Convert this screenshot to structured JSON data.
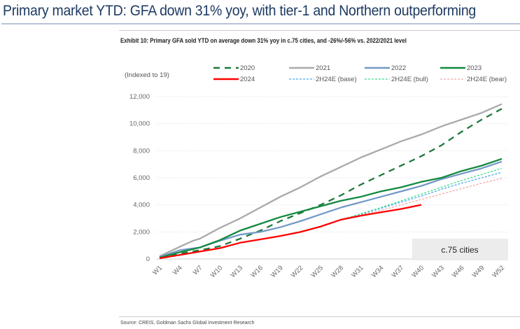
{
  "header": {
    "title": "Primary market YTD: GFA down 31% yoy, with tier-1 and Northern outperforming"
  },
  "exhibit_title": "Exhibit 10: Primary GFA sold YTD on average down 31% yoy in c.75 cities, and -26%/-56% vs. 2022/2021 level",
  "source": "Source: CREIS, Goldman Sachs Global Investment Research",
  "chart_data": {
    "type": "line",
    "ylabel": "(Indexed to 19)",
    "annotation": "c.75 cities",
    "ylim": [
      0,
      12000
    ],
    "yticks": [
      0,
      2000,
      4000,
      6000,
      8000,
      10000,
      12000
    ],
    "ytick_labels": [
      "0",
      "2,000",
      "4,000",
      "6,000",
      "8,000",
      "10,000",
      "12,000"
    ],
    "xticks": [
      "W1",
      "W4",
      "W7",
      "W10",
      "W13",
      "W16",
      "W19",
      "W22",
      "W25",
      "W28",
      "W31",
      "W34",
      "W37",
      "W40",
      "W43",
      "W46",
      "W49",
      "W52"
    ],
    "grid": "horizontal",
    "legend": "top",
    "series": [
      {
        "name": "2020",
        "color": "#1e7a3c",
        "style": "dash-long",
        "x": [
          1,
          4,
          7,
          10,
          13,
          16,
          19,
          22,
          25,
          28,
          31,
          34,
          37,
          40,
          43,
          46,
          49,
          52
        ],
        "values": [
          100,
          400,
          650,
          950,
          1500,
          2100,
          2800,
          3400,
          4000,
          4700,
          5500,
          6200,
          6900,
          7600,
          8400,
          9400,
          10300,
          11100
        ]
      },
      {
        "name": "2021",
        "color": "#aaaaaa",
        "style": "solid",
        "x": [
          1,
          4,
          6,
          7,
          10,
          13,
          16,
          19,
          22,
          25,
          28,
          31,
          34,
          37,
          40,
          43,
          46,
          49,
          52
        ],
        "values": [
          200,
          900,
          1350,
          1500,
          2300,
          3000,
          3800,
          4600,
          5300,
          6100,
          6800,
          7500,
          8100,
          8700,
          9200,
          9800,
          10300,
          10800,
          11450
        ]
      },
      {
        "name": "2022",
        "color": "#7399c6",
        "style": "solid",
        "x": [
          1,
          4,
          7,
          10,
          13,
          16,
          19,
          22,
          25,
          28,
          31,
          34,
          37,
          40,
          43,
          46,
          49,
          52
        ],
        "values": [
          150,
          650,
          850,
          1350,
          1800,
          2000,
          2350,
          2800,
          3300,
          3800,
          4200,
          4600,
          5000,
          5400,
          5900,
          6300,
          6700,
          7200
        ]
      },
      {
        "name": "2023",
        "color": "#12893f",
        "style": "solid",
        "x": [
          1,
          4,
          7,
          10,
          13,
          16,
          19,
          22,
          25,
          28,
          31,
          34,
          37,
          40,
          43,
          46,
          49,
          52
        ],
        "values": [
          100,
          500,
          850,
          1400,
          2100,
          2600,
          3100,
          3500,
          3900,
          4300,
          4600,
          5000,
          5300,
          5700,
          6000,
          6500,
          6900,
          7400
        ]
      },
      {
        "name": "2024",
        "color": "#ff0000",
        "style": "solid",
        "x": [
          1,
          4,
          7,
          10,
          13,
          16,
          19,
          22,
          25,
          28,
          31,
          34,
          37,
          40
        ],
        "values": [
          50,
          300,
          550,
          800,
          1200,
          1450,
          1700,
          2000,
          2400,
          2900,
          3200,
          3450,
          3700,
          4000
        ]
      },
      {
        "name": "2H24E (base)",
        "color": "#4aa8f0",
        "style": "dash-short",
        "x": [
          28,
          31,
          34,
          37,
          40,
          43,
          46,
          49,
          52
        ],
        "values": [
          2900,
          3300,
          3750,
          4200,
          4650,
          5150,
          5600,
          6000,
          6400
        ]
      },
      {
        "name": "2H24E (bull)",
        "color": "#3ee08a",
        "style": "dash-short",
        "x": [
          28,
          31,
          34,
          37,
          40,
          43,
          46,
          49,
          52
        ],
        "values": [
          2900,
          3350,
          3800,
          4300,
          4800,
          5300,
          5800,
          6250,
          6700
        ]
      },
      {
        "name": "2H24E (bear)",
        "color": "#f2a9a9",
        "style": "dash-short",
        "x": [
          28,
          31,
          34,
          37,
          40,
          43,
          46,
          49,
          52
        ],
        "values": [
          2900,
          3250,
          3600,
          4000,
          4400,
          4800,
          5200,
          5600,
          5950
        ]
      }
    ]
  }
}
